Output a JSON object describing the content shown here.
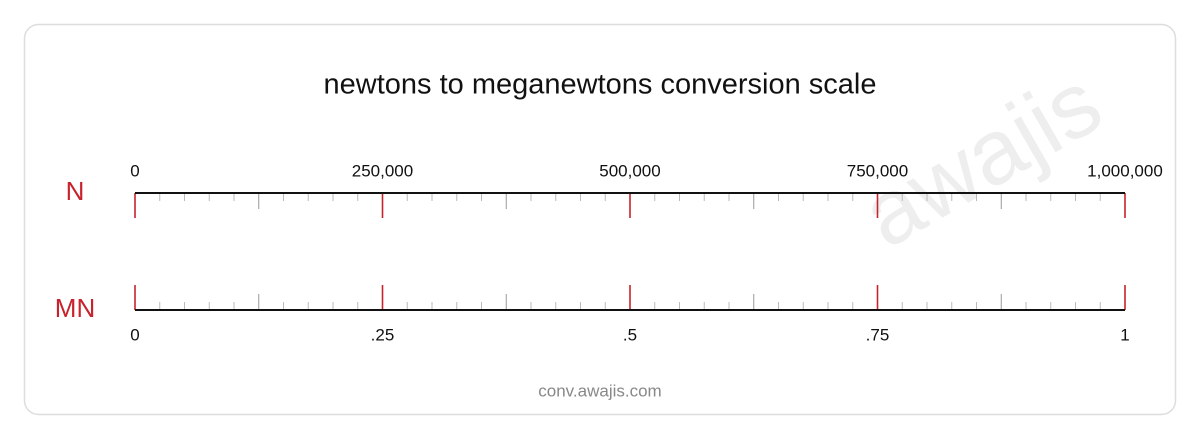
{
  "chart_data": {
    "type": "scale",
    "title": "newtons to meganewtons conversion scale",
    "watermark": "awajis",
    "footer": "conv.awajis.com",
    "unit_color": "#c8232c",
    "scales": [
      {
        "unit": "N",
        "side": "top",
        "lim": [
          0,
          1000000
        ],
        "ticks": [
          0,
          {
            "value": 250000,
            "label": "250,000"
          },
          {
            "value": 500000,
            "label": "500,000"
          },
          {
            "value": 750000,
            "label": "750,000"
          },
          {
            "value": 1000000,
            "label": "1,000,000"
          }
        ],
        "minor_ticks": [
          25000,
          50000,
          75000,
          100000,
          125000,
          150000,
          175000,
          200000,
          225000,
          275000,
          300000,
          325000,
          350000,
          375000,
          400000,
          425000,
          450000,
          475000,
          525000,
          550000,
          575000,
          600000,
          625000,
          650000,
          675000,
          700000,
          725000,
          775000,
          800000,
          825000,
          850000,
          875000,
          900000,
          925000,
          950000,
          975000
        ]
      },
      {
        "unit": "MN",
        "side": "bottom",
        "lim": [
          0,
          1
        ],
        "ticks": [
          0,
          {
            "value": 0.25,
            "label": ".25"
          },
          {
            "value": 0.5,
            "label": ".5"
          },
          {
            "value": 0.75,
            "label": ".75"
          },
          1
        ],
        "minor_ticks": [
          0.025,
          0.05,
          0.075,
          0.1,
          0.125,
          0.15,
          0.175,
          0.2,
          0.225,
          0.275,
          0.3,
          0.325,
          0.35,
          0.375,
          0.4,
          0.425,
          0.45,
          0.475,
          0.525,
          0.55,
          0.575,
          0.6,
          0.625,
          0.65,
          0.675,
          0.7,
          0.725,
          0.775,
          0.8,
          0.825,
          0.85,
          0.875,
          0.9,
          0.925,
          0.95,
          0.975
        ]
      }
    ]
  }
}
